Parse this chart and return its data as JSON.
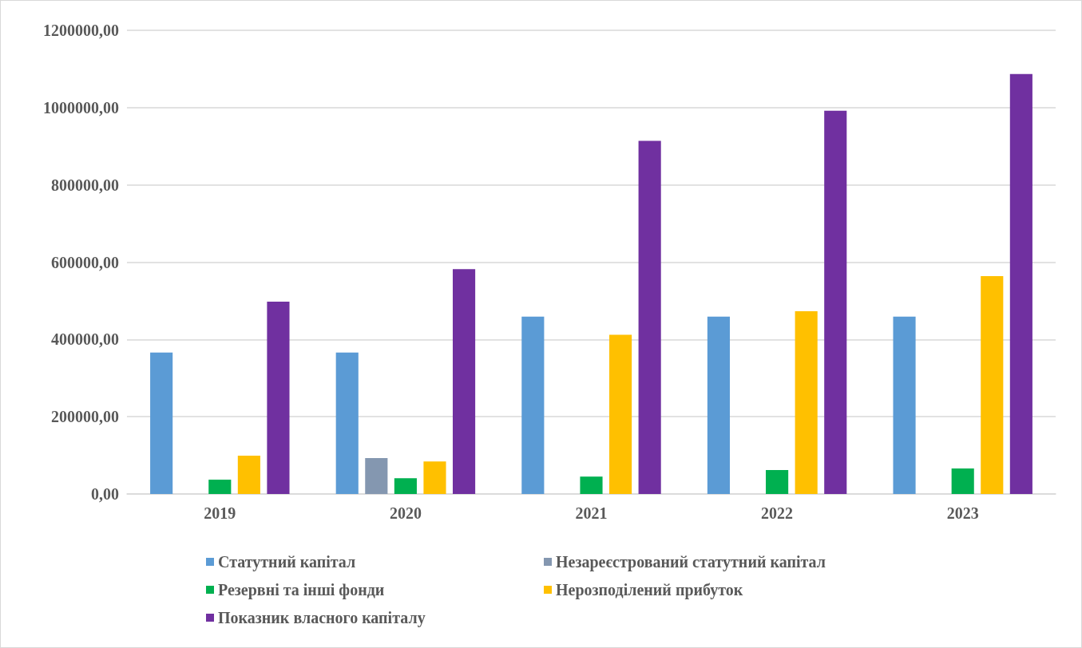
{
  "chart_data": {
    "type": "bar",
    "categories": [
      "2019",
      "2020",
      "2021",
      "2022",
      "2023"
    ],
    "series": [
      {
        "name": "Статутний капітал",
        "color": "#5b9bd5",
        "values": [
          366000,
          366000,
          459000,
          459000,
          459000
        ]
      },
      {
        "name": "Незареєстрований статутний капітал",
        "color": "#8497b0",
        "values": [
          null,
          93000,
          null,
          null,
          null
        ]
      },
      {
        "name": "Резервні та інші фонди",
        "color": "#00b050",
        "values": [
          37000,
          41000,
          45000,
          62000,
          66000
        ]
      },
      {
        "name": "Нерозподілений прибуток",
        "color": "#ffc000",
        "values": [
          99000,
          84000,
          412000,
          473000,
          564000
        ]
      },
      {
        "name": "Показник власного капіталу",
        "color": "#7030a0",
        "values": [
          498000,
          582000,
          914000,
          992000,
          1087000
        ]
      }
    ],
    "ylim": [
      0,
      1200000
    ],
    "yticks": [
      {
        "value": 0,
        "label": "0,00"
      },
      {
        "value": 200000,
        "label": "200000,00"
      },
      {
        "value": 400000,
        "label": "400000,00"
      },
      {
        "value": 600000,
        "label": "600000,00"
      },
      {
        "value": 800000,
        "label": "800000,00"
      },
      {
        "value": 1000000,
        "label": "1000000,00"
      },
      {
        "value": 1200000,
        "label": "1200000,00"
      }
    ],
    "grid": "y",
    "legend": "bottom"
  }
}
